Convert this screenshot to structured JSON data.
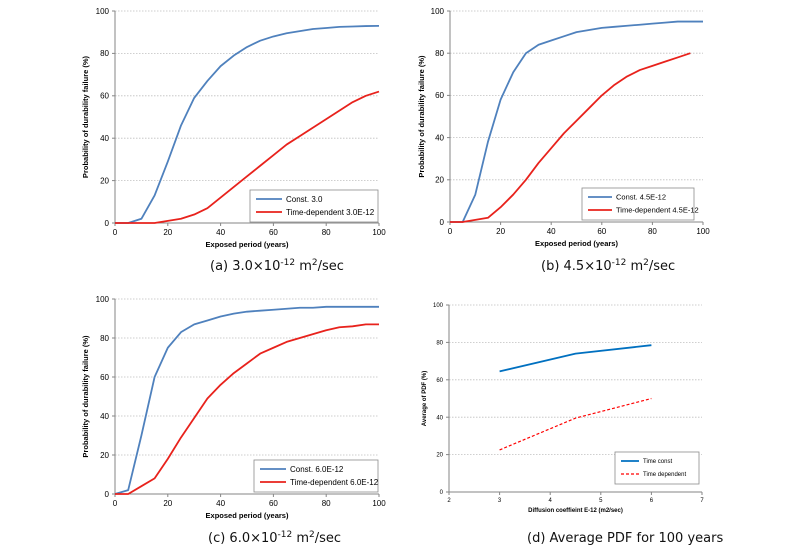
{
  "chart_data": [
    {
      "id": "a",
      "type": "line",
      "caption": "(a) 3.0×10",
      "caption_exp": "-12",
      "caption_unit": " m",
      "caption_unit_exp": "2",
      "caption_tail": "/sec",
      "xlabel": "Exposed period (years)",
      "ylabel": "Probability of durability failure (%)",
      "xlim": [
        0,
        100
      ],
      "ylim": [
        0,
        100
      ],
      "xticks": [
        0,
        20,
        40,
        60,
        80,
        100
      ],
      "yticks": [
        0,
        20,
        40,
        60,
        80,
        100
      ],
      "grid": true,
      "legend_position": "bottom-right",
      "series": [
        {
          "name": "Const. 3.0",
          "color": "#4f81bd",
          "style": "solid",
          "x": [
            0,
            5,
            10,
            15,
            20,
            25,
            30,
            35,
            40,
            45,
            50,
            55,
            60,
            65,
            70,
            75,
            80,
            85,
            90,
            95,
            100
          ],
          "y": [
            0,
            0,
            2,
            13,
            29,
            46,
            59,
            67,
            74,
            79,
            83,
            86,
            88,
            89.5,
            90.5,
            91.5,
            92,
            92.5,
            92.7,
            92.9,
            93
          ]
        },
        {
          "name": "Time-dependent 3.0E-12",
          "color": "#e8221c",
          "style": "solid",
          "x": [
            0,
            5,
            10,
            15,
            20,
            25,
            30,
            35,
            40,
            45,
            50,
            55,
            60,
            65,
            70,
            75,
            80,
            85,
            90,
            95,
            100
          ],
          "y": [
            0,
            0,
            0,
            0,
            1,
            2,
            4,
            7,
            12,
            17,
            22,
            27,
            32,
            37,
            41,
            45,
            49,
            53,
            57,
            60,
            62
          ]
        }
      ]
    },
    {
      "id": "b",
      "type": "line",
      "caption": "(b) 4.5×10",
      "caption_exp": "-12",
      "caption_unit": " m",
      "caption_unit_exp": "2",
      "caption_tail": "/sec",
      "xlabel": "Exposed period (years)",
      "ylabel": "Probability of durability failure (%)",
      "xlim": [
        0,
        100
      ],
      "ylim": [
        0,
        100
      ],
      "xticks": [
        0,
        20,
        40,
        60,
        80,
        100
      ],
      "yticks": [
        0,
        20,
        40,
        60,
        80,
        100
      ],
      "grid": true,
      "legend_position": "bottom-right",
      "series": [
        {
          "name": "Const. 4.5E-12",
          "color": "#4f81bd",
          "style": "solid",
          "x": [
            0,
            5,
            10,
            15,
            20,
            25,
            30,
            35,
            40,
            45,
            50,
            55,
            60,
            65,
            70,
            75,
            80,
            85,
            90,
            95,
            100
          ],
          "y": [
            0,
            0,
            13,
            38,
            58,
            71,
            80,
            84,
            86,
            88,
            90,
            91,
            92,
            92.5,
            93,
            93.5,
            94,
            94.5,
            95,
            95,
            95
          ]
        },
        {
          "name": "Time-dependent 4.5E-12",
          "color": "#e8221c",
          "style": "solid",
          "x": [
            0,
            5,
            10,
            15,
            20,
            25,
            30,
            35,
            40,
            45,
            50,
            55,
            60,
            65,
            70,
            75,
            80,
            85,
            90,
            95
          ],
          "y": [
            0,
            0,
            1,
            2,
            7,
            13,
            20,
            28,
            35,
            42,
            48,
            54,
            60,
            65,
            69,
            72,
            74,
            76,
            78,
            80
          ]
        }
      ]
    },
    {
      "id": "c",
      "type": "line",
      "caption": "(c) 6.0×10",
      "caption_exp": "-12",
      "caption_unit": " m",
      "caption_unit_exp": "2",
      "caption_tail": "/sec",
      "xlabel": "Exposed period (years)",
      "ylabel": "Probability of durability failure (%)",
      "xlim": [
        0,
        100
      ],
      "ylim": [
        0,
        100
      ],
      "xticks": [
        0,
        20,
        40,
        60,
        80,
        100
      ],
      "yticks": [
        0,
        20,
        40,
        60,
        80,
        100
      ],
      "grid": true,
      "legend_position": "bottom-right",
      "series": [
        {
          "name": "Const. 6.0E-12",
          "color": "#4f81bd",
          "style": "solid",
          "x": [
            0,
            5,
            10,
            15,
            20,
            25,
            30,
            35,
            40,
            45,
            50,
            55,
            60,
            65,
            70,
            75,
            80,
            85,
            90,
            95,
            100
          ],
          "y": [
            0,
            2,
            30,
            60,
            75,
            83,
            87,
            89,
            91,
            92.5,
            93.5,
            94,
            94.5,
            95,
            95.5,
            95.5,
            96,
            96,
            96,
            96,
            96
          ]
        },
        {
          "name": "Time-dependent 6.0E-12",
          "color": "#e8221c",
          "style": "solid",
          "x": [
            0,
            5,
            10,
            15,
            20,
            25,
            30,
            35,
            40,
            45,
            50,
            55,
            60,
            65,
            70,
            75,
            80,
            85,
            90,
            95,
            100
          ],
          "y": [
            0,
            0,
            4,
            8,
            18,
            29,
            39,
            49,
            56,
            62,
            67,
            72,
            75,
            78,
            80,
            82,
            84,
            85.5,
            86,
            87,
            87
          ]
        }
      ]
    },
    {
      "id": "d",
      "type": "line",
      "caption": "(d) Average PDF for 100 years",
      "caption_exp": "",
      "caption_unit": "",
      "caption_unit_exp": "",
      "caption_tail": "",
      "xlabel": "Diffusion coeffieint E-12 (m2/sec)",
      "ylabel": "Average of PDF (%)",
      "xlim": [
        2,
        7
      ],
      "ylim": [
        0,
        100
      ],
      "xticks": [
        2,
        3,
        4,
        5,
        6,
        7
      ],
      "yticks": [
        0,
        20,
        40,
        60,
        80,
        100
      ],
      "grid": true,
      "legend_position": "bottom-right",
      "series": [
        {
          "name": "Time const",
          "color": "#0070c0",
          "style": "solid",
          "x": [
            3.0,
            4.5,
            6.0
          ],
          "y": [
            64.5,
            74,
            78.5
          ]
        },
        {
          "name": "Time dependent",
          "color": "#ff0000",
          "style": "dashed",
          "x": [
            3.0,
            4.5,
            6.0
          ],
          "y": [
            22.5,
            39.5,
            50
          ]
        }
      ]
    }
  ]
}
